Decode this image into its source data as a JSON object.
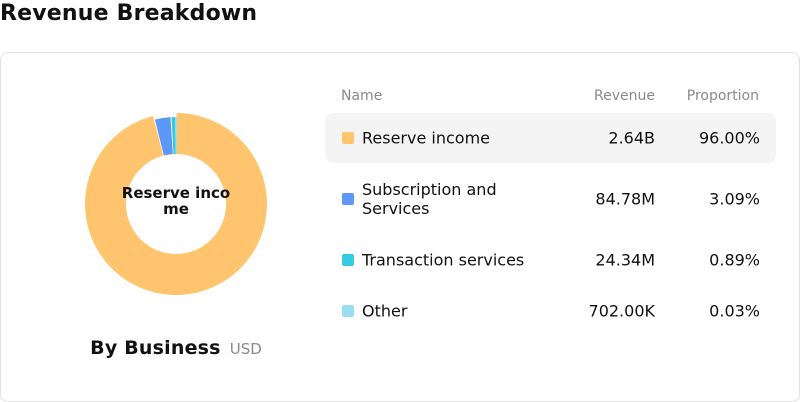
{
  "title": "Revenue Breakdown",
  "table": {
    "headers": {
      "name": "Name",
      "revenue": "Revenue",
      "proportion": "Proportion"
    }
  },
  "donut": {
    "center_label": "Reserve income"
  },
  "footer": {
    "label": "By Business",
    "unit": "USD"
  },
  "chart_data": {
    "type": "pie",
    "title": "Revenue Breakdown",
    "categories": [
      "Reserve income",
      "Subscription and Services",
      "Transaction services",
      "Other"
    ],
    "values": [
      2640000000,
      84780000,
      24340000,
      702000
    ],
    "revenue_labels": [
      "2.64B",
      "84.78M",
      "24.34M",
      "702.00K"
    ],
    "proportion_labels": [
      "96.00%",
      "3.09%",
      "0.89%",
      "0.03%"
    ],
    "proportions": [
      96.0,
      3.09,
      0.89,
      0.03
    ],
    "colors": [
      "#FFC46E",
      "#5E97F6",
      "#36CBE0",
      "#9ADEF3"
    ],
    "highlighted_index": 0,
    "unit": "USD",
    "legend": "right"
  }
}
